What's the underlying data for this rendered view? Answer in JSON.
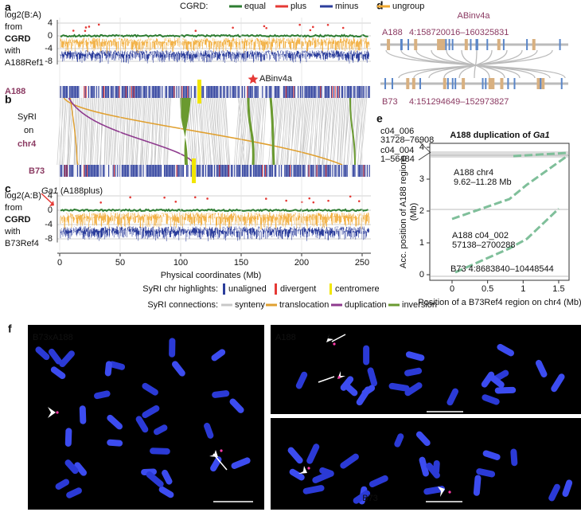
{
  "panel_a": {
    "label": "a",
    "legend_title": "CGRD:",
    "legend": [
      {
        "name": "equal",
        "color": "#2e7d32"
      },
      {
        "name": "plus",
        "color": "#e53935"
      },
      {
        "name": "minus",
        "color": "#2c3e9c"
      },
      {
        "name": "ungroup",
        "color": "#f0a830"
      }
    ],
    "ylabel": [
      "log2(B:A)",
      "from",
      "CGRD",
      "with",
      "A188Ref1"
    ],
    "yticks": [
      4,
      0,
      -4,
      -8
    ]
  },
  "panel_b": {
    "label": "b",
    "top_genome": "A188",
    "bottom_genome": "B73",
    "side_label": [
      "SyRI",
      "on",
      "chr4"
    ],
    "annotation": "ABinv4a"
  },
  "panel_c": {
    "label": "c",
    "ylabel": [
      "log2(A:B)",
      "from",
      "CGRD",
      "with",
      "B73Ref4"
    ],
    "yticks": [
      4,
      0,
      -4,
      -8
    ],
    "annotation_gene": "Ga1",
    "annotation_note": "(A188plus)",
    "xticks": [
      0,
      50,
      100,
      150,
      200,
      250
    ],
    "xlabel": "Physical coordinates (Mb)"
  },
  "legend": {
    "highlights_title": "SyRI chr highlights:",
    "highlights": [
      {
        "name": "unaligned",
        "color": "#2c3e9c"
      },
      {
        "name": "divergent",
        "color": "#e53935"
      },
      {
        "name": "centromere",
        "color": "#f2e600"
      }
    ],
    "connections_title": "SyRI connections:",
    "connections": [
      {
        "name": "synteny",
        "color": "#c8c8c8"
      },
      {
        "name": "translocation",
        "color": "#e0a030"
      },
      {
        "name": "duplication",
        "color": "#8e3a8e"
      },
      {
        "name": "inversion",
        "color": "#6a9a30"
      }
    ]
  },
  "panel_d": {
    "label": "d",
    "title": "ABinv4a",
    "top_genome": "A188",
    "top_region": "4:158720016–160325831",
    "bottom_genome": "B73",
    "bottom_region": "4:151294649–152973827"
  },
  "panel_e": {
    "label": "e",
    "title": "A188 duplication of",
    "title_gene": "Ga1",
    "contigs": [
      {
        "name": "c04_006",
        "range": "31728–76908"
      },
      {
        "name": "c04_004",
        "range": "1–56484"
      }
    ],
    "annotations": [
      "A188 chr4",
      "9.62–11.28 Mb",
      "A188 c04_002",
      "57138–2700288",
      "B73 4:8683840–10448544"
    ],
    "yticks": [
      0,
      1,
      2,
      3,
      4
    ],
    "xticks": [
      0,
      0.5,
      1,
      1.5
    ],
    "ylabel": [
      "Acc. position of A188 regions",
      "(Mb)"
    ],
    "xlabel": "Position of a B73Ref4 region on chr4 (Mb)"
  },
  "panel_f": {
    "label": "f",
    "images": [
      "B73xA188",
      "A188",
      "B73"
    ]
  }
}
